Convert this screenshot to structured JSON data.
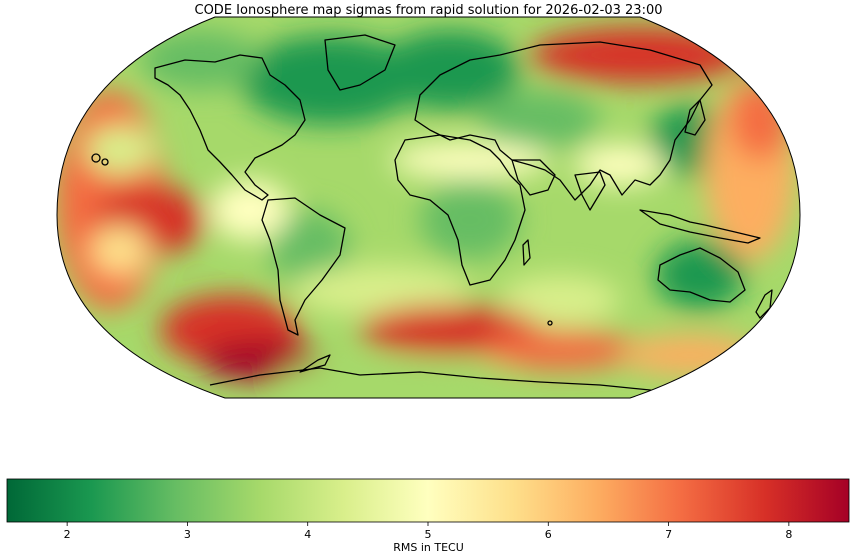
{
  "title": "CODE Ionosphere map sigmas from rapid solution for 2026-02-03 23:00",
  "colorbar": {
    "label": "RMS in TECU",
    "min": 1.5,
    "max": 8.5,
    "ticks": [
      "2",
      "3",
      "4",
      "5",
      "6",
      "7",
      "8"
    ],
    "colors": [
      "#006837",
      "#1a9850",
      "#66bd63",
      "#a6d96a",
      "#d9ef8b",
      "#ffffbf",
      "#fee08b",
      "#fdae61",
      "#f46d43",
      "#d73027",
      "#a50026"
    ]
  },
  "map": {
    "projection": "Robinson",
    "coastline_color": "#000000"
  }
}
